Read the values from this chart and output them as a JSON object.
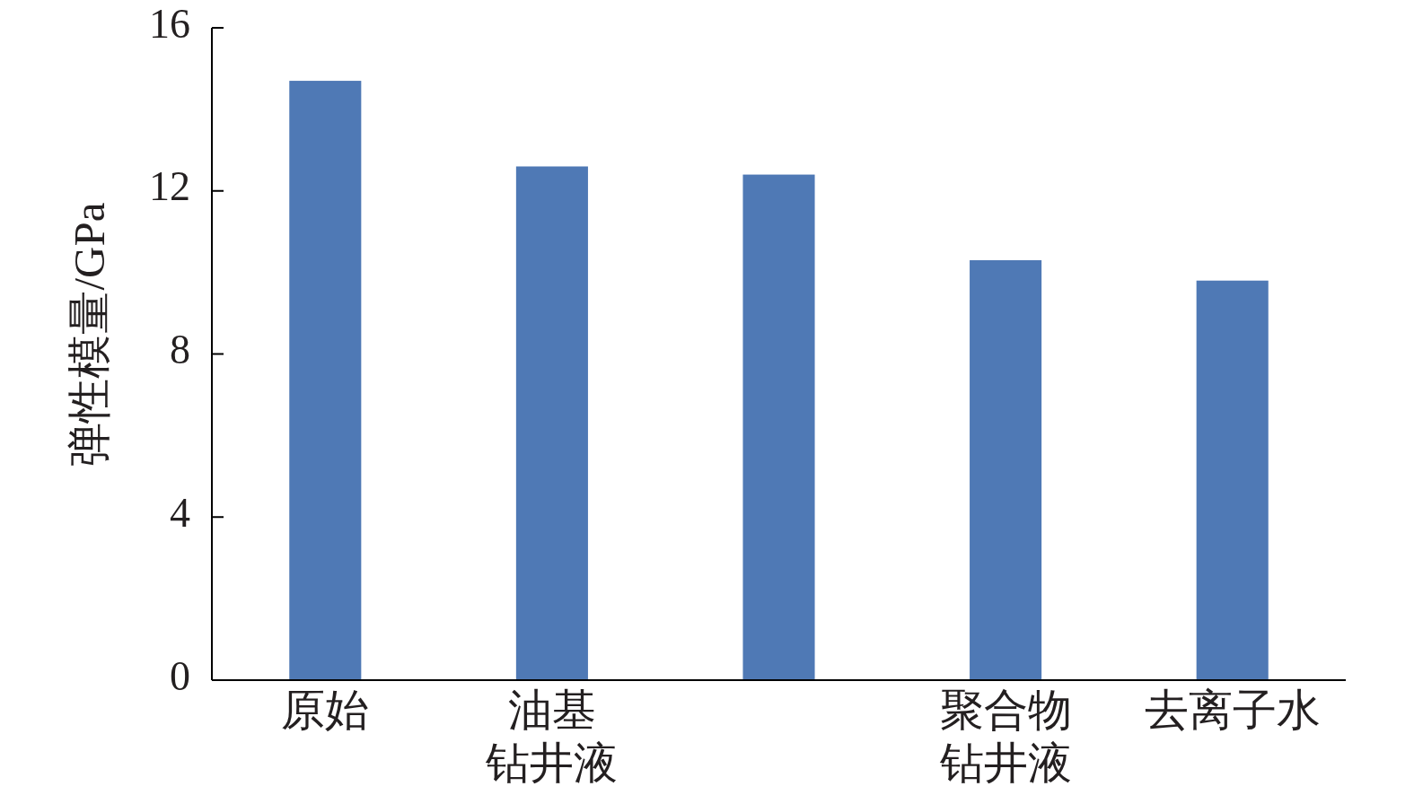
{
  "chart_data": {
    "type": "bar",
    "ylabel": "弹性模量/GPa",
    "categories": [
      "原始",
      "油基钻井液",
      null,
      "聚合物钻井液",
      "去离子水"
    ],
    "values": [
      14.7,
      12.6,
      12.4,
      10.3,
      9.8
    ],
    "color": "#4f79b5",
    "ylim": [
      0,
      16
    ],
    "yticks": [
      0,
      4,
      8,
      12,
      16
    ]
  }
}
